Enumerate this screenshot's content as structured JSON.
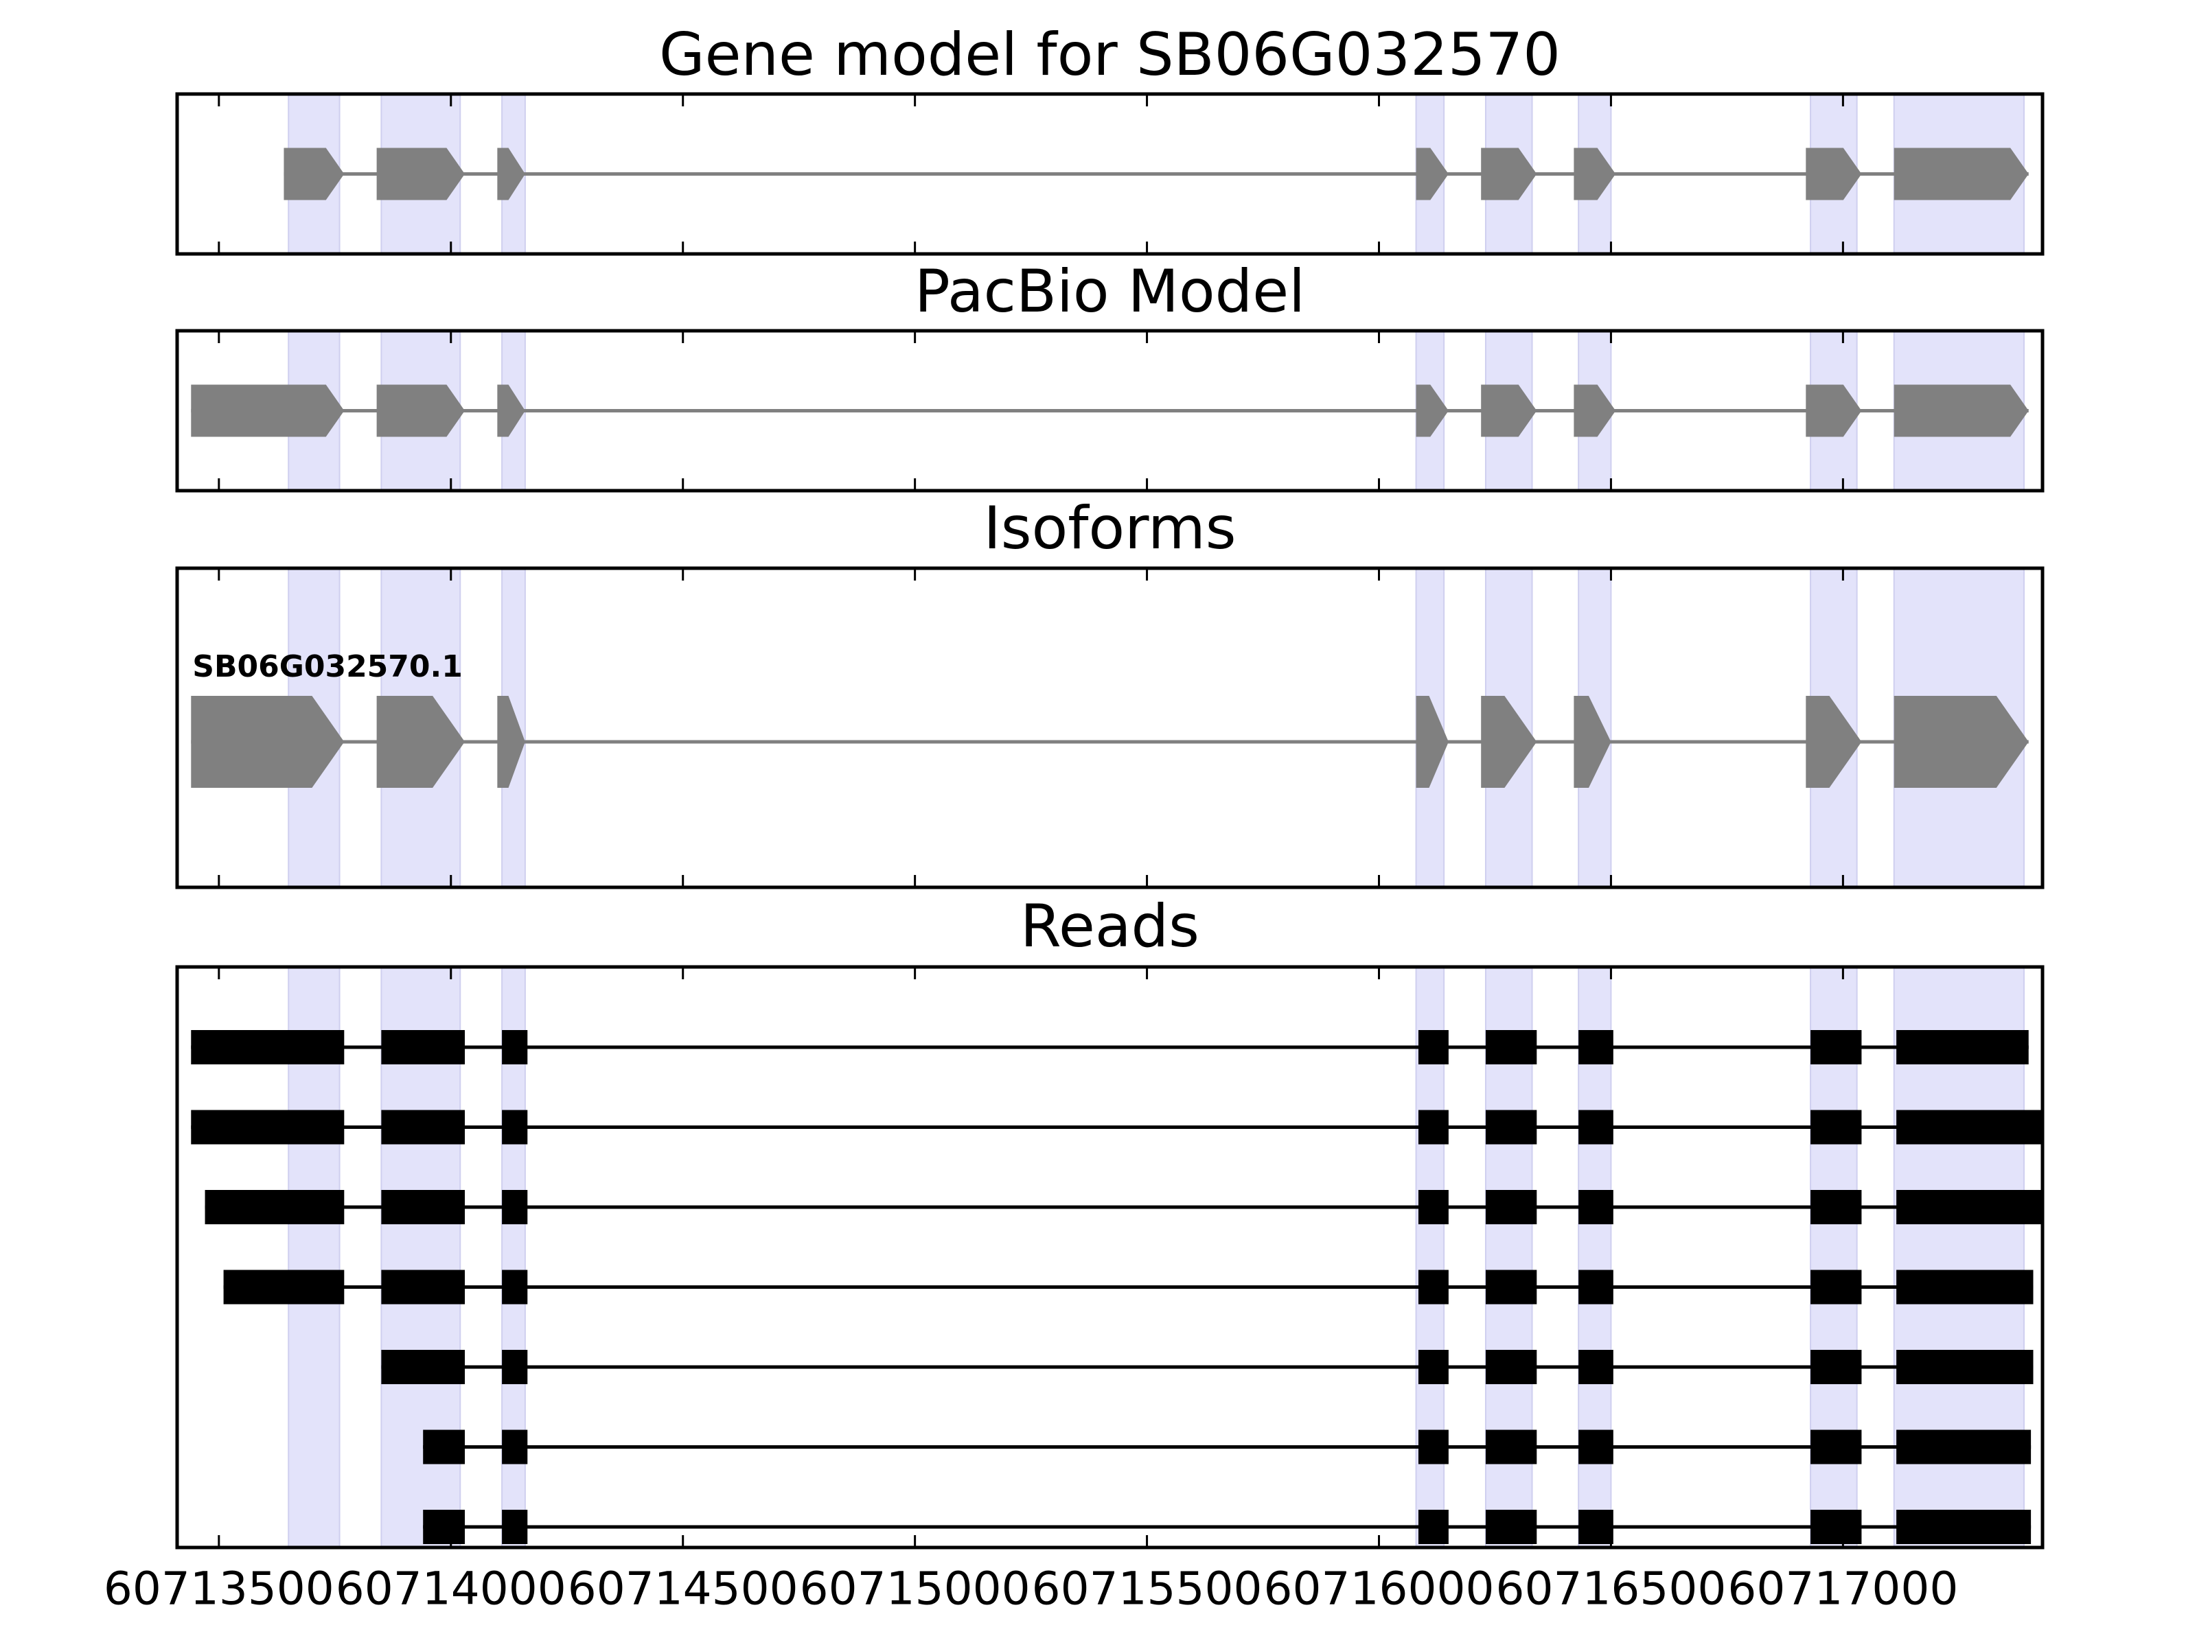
{
  "chart_data": {
    "type": "gene-track",
    "x_tick_labels": [
      "60713500",
      "60714000",
      "60714500",
      "60715000",
      "60715500",
      "60716000",
      "60716500",
      "60717000"
    ],
    "x_ticks": [
      60713500,
      60714000,
      60714500,
      60715000,
      60715500,
      60716000,
      60716500,
      60717000
    ],
    "xlim": [
      60713410,
      60717430
    ],
    "highlight_exons": [
      [
        60713650,
        60713760
      ],
      [
        60713850,
        60714020
      ],
      [
        60714110,
        60714160
      ],
      [
        60716080,
        60716140
      ],
      [
        60716230,
        60716330
      ],
      [
        60716430,
        60716500
      ],
      [
        60716930,
        60717030
      ],
      [
        60717110,
        60717390
      ]
    ],
    "panels": [
      {
        "title": "Gene model for SB06G032570",
        "kind": "model",
        "features": [
          {
            "exons": [
              [
                60713640,
                60713770
              ],
              [
                60713840,
                60714030
              ],
              [
                60714100,
                60714160
              ],
              [
                60716080,
                60716150
              ],
              [
                60716220,
                60716340
              ],
              [
                60716420,
                60716510
              ],
              [
                60716920,
                60717040
              ],
              [
                60717110,
                60717400
              ]
            ]
          }
        ]
      },
      {
        "title": "PacBio Model",
        "kind": "model",
        "features": [
          {
            "exons": [
              [
                60713440,
                60713770
              ],
              [
                60713840,
                60714030
              ],
              [
                60714100,
                60714160
              ],
              [
                60716080,
                60716150
              ],
              [
                60716220,
                60716340
              ],
              [
                60716420,
                60716510
              ],
              [
                60716920,
                60717040
              ],
              [
                60717110,
                60717400
              ]
            ]
          }
        ]
      },
      {
        "title": "Isoforms",
        "kind": "isoform",
        "features": [
          {
            "label": "SB06G032570.1",
            "exons": [
              [
                60713440,
                60713770
              ],
              [
                60713840,
                60714030
              ],
              [
                60714100,
                60714160
              ],
              [
                60716080,
                60716150
              ],
              [
                60716220,
                60716340
              ],
              [
                60716420,
                60716500
              ],
              [
                60716920,
                60717040
              ],
              [
                60717110,
                60717400
              ]
            ]
          }
        ]
      },
      {
        "title": "Reads",
        "kind": "reads",
        "features": [
          {
            "exons": [
              [
                60713440,
                60713770
              ],
              [
                60713850,
                60714030
              ],
              [
                60714110,
                60714165
              ],
              [
                60716085,
                60716150
              ],
              [
                60716230,
                60716340
              ],
              [
                60716430,
                60716505
              ],
              [
                60716930,
                60717040
              ],
              [
                60717115,
                60717400
              ]
            ]
          },
          {
            "exons": [
              [
                60713440,
                60713770
              ],
              [
                60713850,
                60714030
              ],
              [
                60714110,
                60714165
              ],
              [
                60716085,
                60716150
              ],
              [
                60716230,
                60716340
              ],
              [
                60716430,
                60716505
              ],
              [
                60716930,
                60717040
              ],
              [
                60717115,
                60717430
              ]
            ]
          },
          {
            "exons": [
              [
                60713470,
                60713770
              ],
              [
                60713850,
                60714030
              ],
              [
                60714110,
                60714165
              ],
              [
                60716085,
                60716150
              ],
              [
                60716230,
                60716340
              ],
              [
                60716430,
                60716505
              ],
              [
                60716930,
                60717040
              ],
              [
                60717115,
                60717430
              ]
            ]
          },
          {
            "exons": [
              [
                60713510,
                60713770
              ],
              [
                60713850,
                60714030
              ],
              [
                60714110,
                60714165
              ],
              [
                60716085,
                60716150
              ],
              [
                60716230,
                60716340
              ],
              [
                60716430,
                60716505
              ],
              [
                60716930,
                60717040
              ],
              [
                60717115,
                60717410
              ]
            ]
          },
          {
            "exons": [
              [
                60713850,
                60714030
              ],
              [
                60714110,
                60714165
              ],
              [
                60716085,
                60716150
              ],
              [
                60716230,
                60716340
              ],
              [
                60716430,
                60716505
              ],
              [
                60716930,
                60717040
              ],
              [
                60717115,
                60717410
              ]
            ]
          },
          {
            "exons": [
              [
                60713940,
                60714030
              ],
              [
                60714110,
                60714165
              ],
              [
                60716085,
                60716150
              ],
              [
                60716230,
                60716340
              ],
              [
                60716430,
                60716505
              ],
              [
                60716930,
                60717040
              ],
              [
                60717115,
                60717405
              ]
            ]
          },
          {
            "exons": [
              [
                60713940,
                60714030
              ],
              [
                60714110,
                60714165
              ],
              [
                60716085,
                60716150
              ],
              [
                60716230,
                60716340
              ],
              [
                60716430,
                60716505
              ],
              [
                60716930,
                60717040
              ],
              [
                60717115,
                60717405
              ]
            ]
          }
        ]
      }
    ],
    "colors": {
      "highlight": "#e3e3fa",
      "model_feature": "#808080",
      "read_feature": "#000000",
      "axes": "#000000"
    },
    "grid": false
  }
}
